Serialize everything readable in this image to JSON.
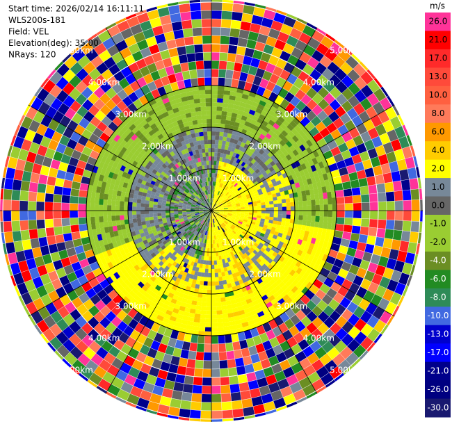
{
  "header": {
    "lines": [
      "Start time: 2026/02/14 16:11:11",
      "WLS200s-181",
      "Field: VEL",
      "Elevation(deg): 35.00",
      "NRays: 120"
    ]
  },
  "colorbar": {
    "unit": "m/s",
    "ticks": [
      {
        "value": 26,
        "label": "26.0"
      },
      {
        "value": 21,
        "label": "21.0"
      },
      {
        "value": 17,
        "label": "17.0"
      },
      {
        "value": 13,
        "label": "13.0"
      },
      {
        "value": 10,
        "label": "10.0"
      },
      {
        "value": 8,
        "label": "8.0"
      },
      {
        "value": 6,
        "label": "6.0"
      },
      {
        "value": 4,
        "label": "4.0"
      },
      {
        "value": 2,
        "label": "2.0"
      },
      {
        "value": 1,
        "label": "1.0"
      },
      {
        "value": 0,
        "label": "0.0"
      },
      {
        "value": -1,
        "label": "-1.0"
      },
      {
        "value": -2,
        "label": "-2.0"
      },
      {
        "value": -4,
        "label": "-4.0"
      },
      {
        "value": -6,
        "label": "-6.0"
      },
      {
        "value": -8,
        "label": "-8.0"
      },
      {
        "value": -10,
        "label": "-10.0"
      },
      {
        "value": -13,
        "label": "-13.0"
      },
      {
        "value": -17,
        "label": "-17.0"
      },
      {
        "value": -21,
        "label": "-21.0"
      },
      {
        "value": -26,
        "label": "-26.0"
      },
      {
        "value": -30,
        "label": "-30.0"
      }
    ],
    "colors": [
      "#ff3399",
      "#ff0000",
      "#ff2a2a",
      "#ff4a3a",
      "#ff6040",
      "#ff7a5a",
      "#ff9900",
      "#ffcc00",
      "#ffff00",
      "#778899",
      "#666666",
      "#9acd32",
      "#9acd32",
      "#6b8e23",
      "#228b22",
      "#2e8b57",
      "#4169e1",
      "#0000cd",
      "#0000ff",
      "#00008b",
      "#000080",
      "#191970"
    ]
  },
  "range_rings": [
    {
      "value": 1,
      "label": "1.00km"
    },
    {
      "value": 2,
      "label": "2.00km"
    },
    {
      "value": 3,
      "label": "3.00km"
    },
    {
      "value": 4,
      "label": "4.00km"
    },
    {
      "value": 5,
      "label": "5.00km"
    }
  ]
}
